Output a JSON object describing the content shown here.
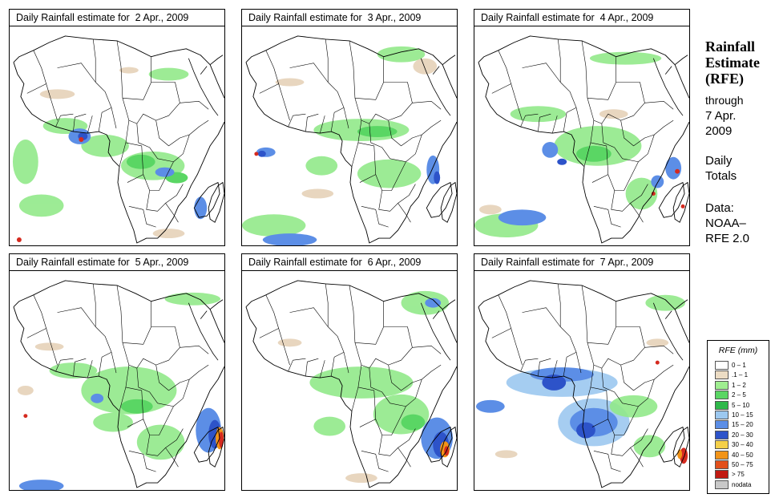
{
  "colors": {
    "light_tan": "#e4cfb4",
    "light_green": "#92e98a",
    "green": "#5ad664",
    "light_blue": "#9cc8f0",
    "blue": "#5c8ee6",
    "dark_blue": "#2d53c9",
    "red": "#d52a1f",
    "orange": "#f29418",
    "border_line": "#000000"
  },
  "panels": [
    {
      "title": "Daily Rainfall estimate for  2 Apr., 2009"
    },
    {
      "title": "Daily Rainfall estimate for  3 Apr., 2009"
    },
    {
      "title": "Daily Rainfall estimate for  4 Apr., 2009"
    },
    {
      "title": "Daily Rainfall estimate for  5 Apr., 2009"
    },
    {
      "title": "Daily Rainfall estimate for  6 Apr., 2009"
    },
    {
      "title": "Daily Rainfall estimate for  7 Apr., 2009"
    }
  ],
  "sidebar": {
    "title_line1": "Rainfall",
    "title_line2": "Estimate",
    "title_line3": "(RFE)",
    "through_label": "through",
    "date_line1": "7 Apr.",
    "date_line2": "2009",
    "daily_label": "Daily",
    "totals_label": "Totals",
    "data_label": "Data:",
    "source_line1": "NOAA–",
    "source_line2": "RFE 2.0"
  },
  "legend": {
    "title": "RFE (mm)",
    "items": [
      {
        "label": "0 – 1",
        "color": "#ffffff"
      },
      {
        "label": ".1 – 1",
        "color": "#ecdcc4"
      },
      {
        "label": "1 – 2",
        "color": "#9fee90"
      },
      {
        "label": "2 – 5",
        "color": "#5ad664"
      },
      {
        "label": "5 – 10",
        "color": "#2fb84a"
      },
      {
        "label": "10 – 15",
        "color": "#9cc8f0"
      },
      {
        "label": "15 – 20",
        "color": "#5c8ee6"
      },
      {
        "label": "20 – 30",
        "color": "#2d53c9"
      },
      {
        "label": "30 – 40",
        "color": "#f5d04a"
      },
      {
        "label": "40 – 50",
        "color": "#f29418"
      },
      {
        "label": "50 – 75",
        "color": "#e2501c"
      },
      {
        "label": "> 75",
        "color": "#c11a12"
      },
      {
        "label": "nodata",
        "color": "#c8c8c8"
      }
    ]
  }
}
